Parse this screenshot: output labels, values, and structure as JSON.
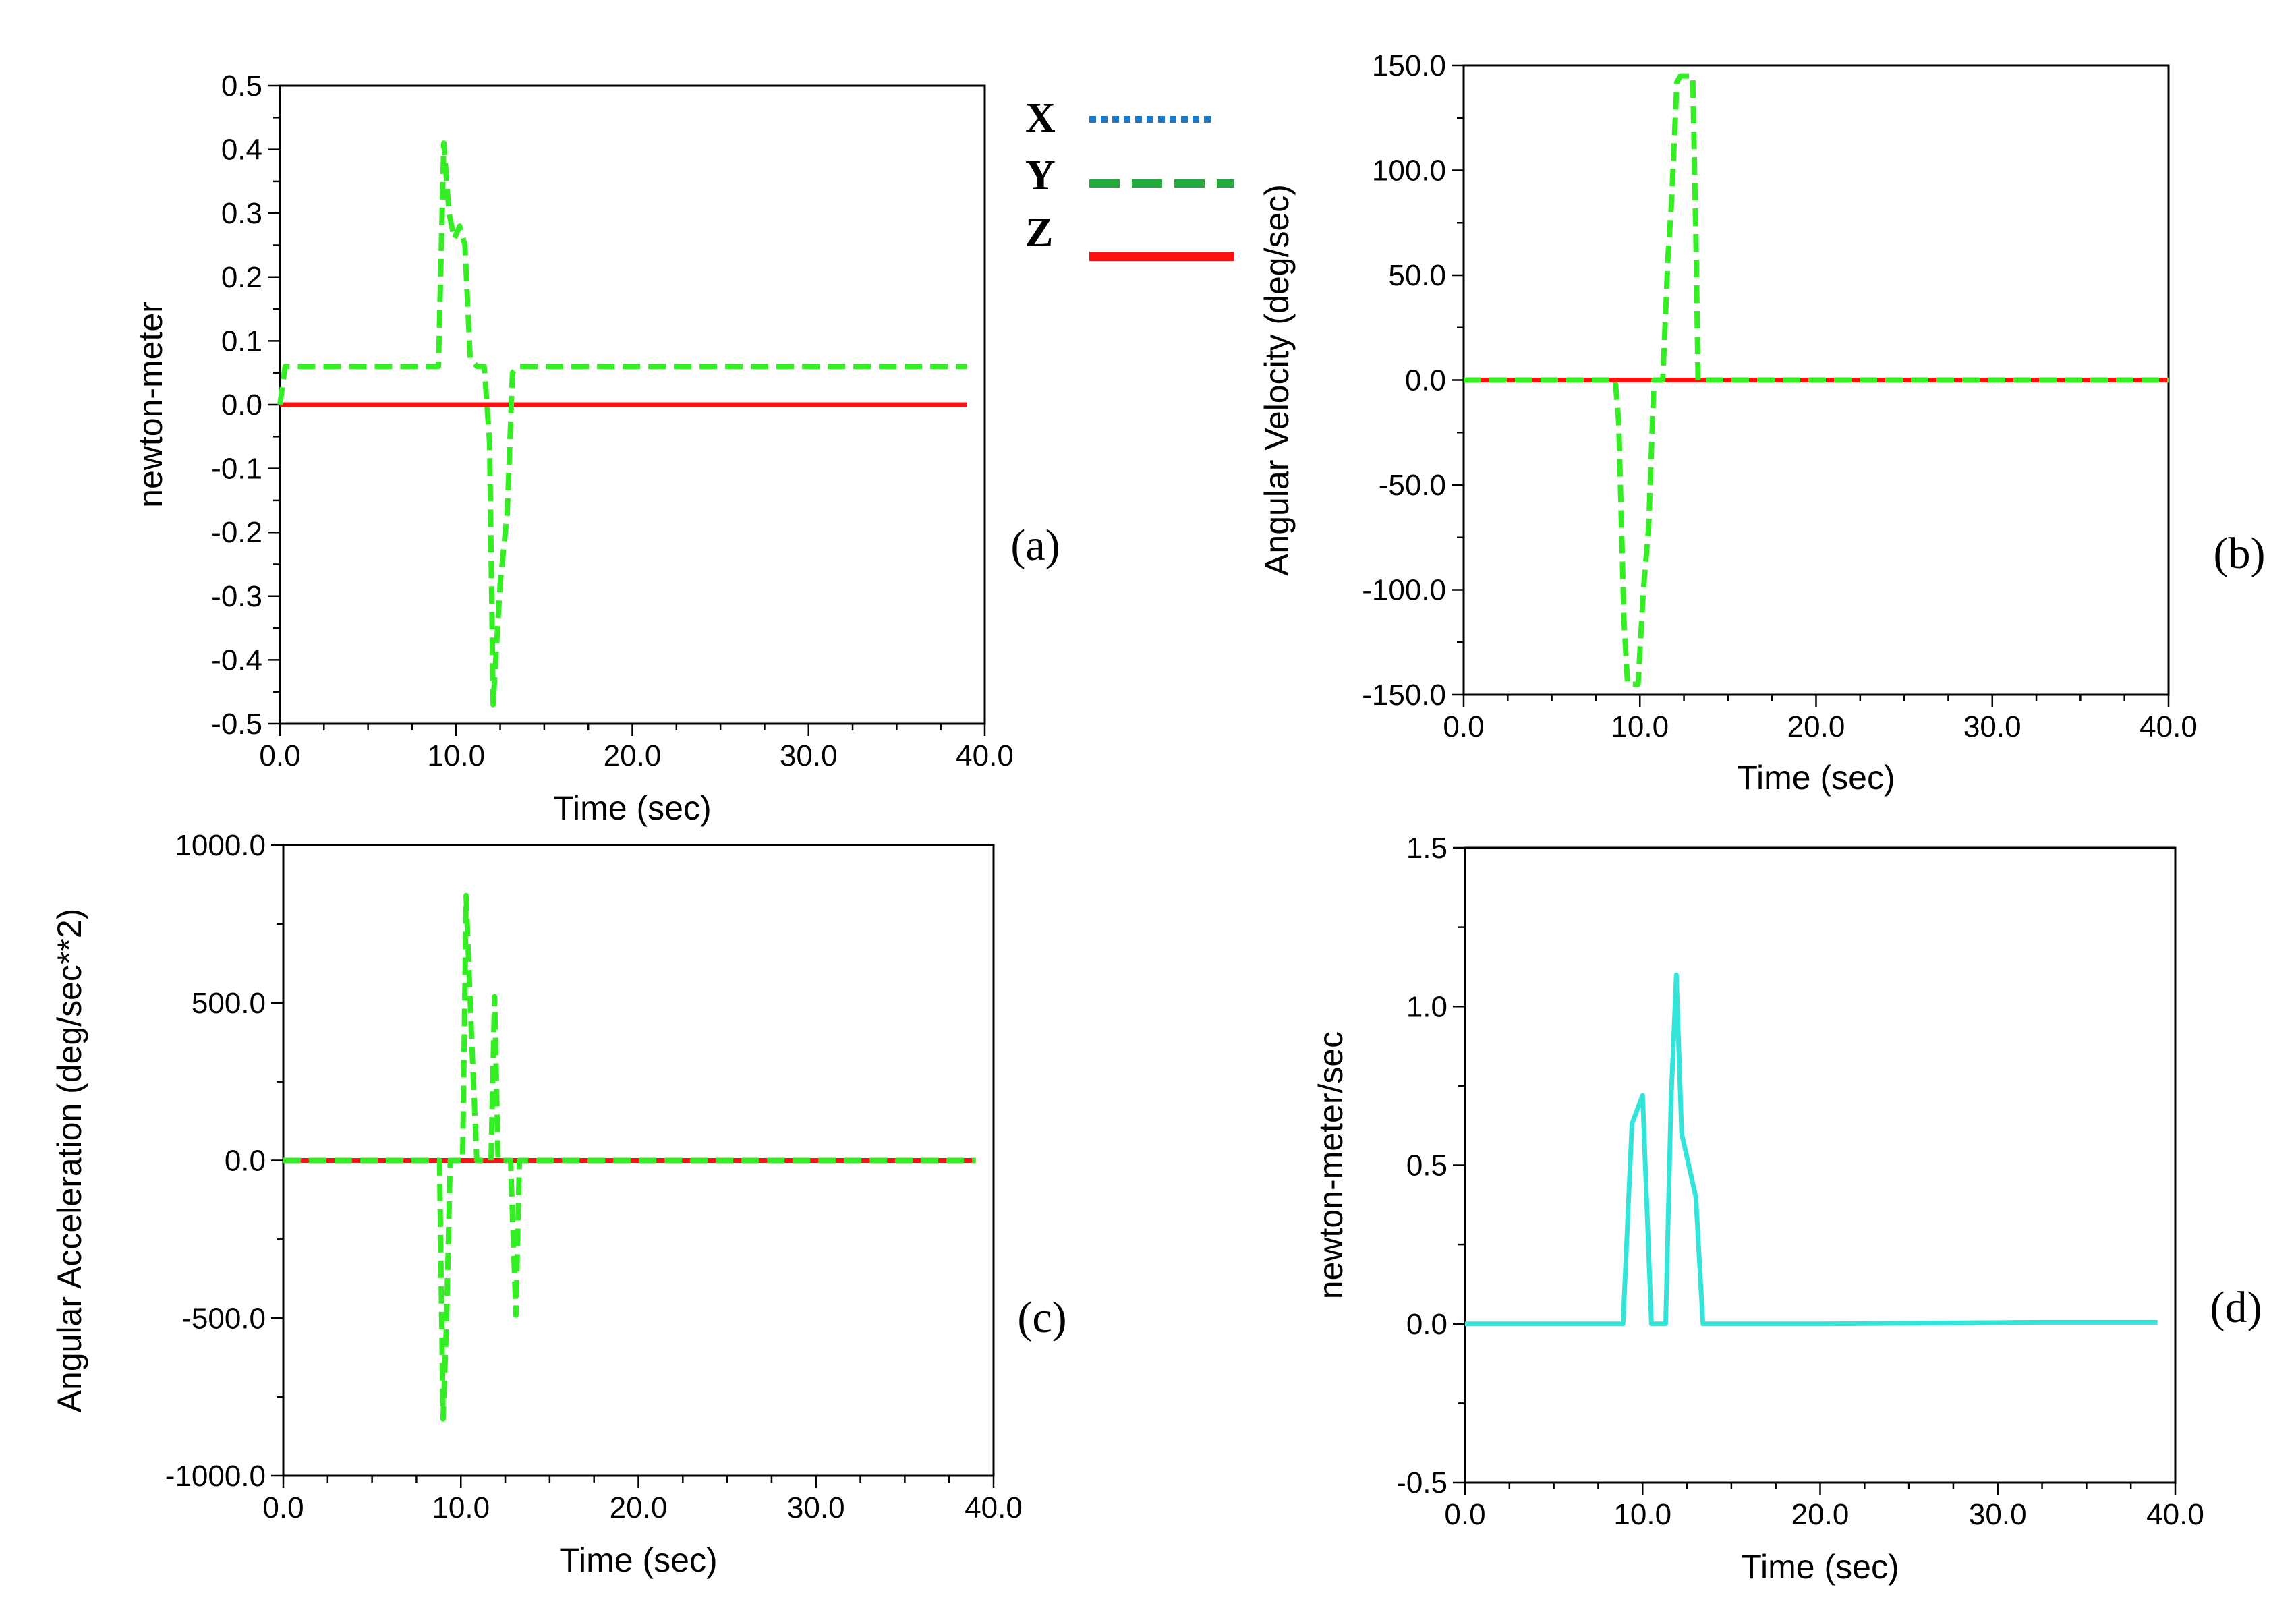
{
  "legend": {
    "entries": [
      {
        "label": "X",
        "color": "#1e78c8",
        "style": "dotted"
      },
      {
        "label": "Y",
        "color": "#22aa3c",
        "style": "dashed"
      },
      {
        "label": "Z",
        "color": "#ff1010",
        "style": "solid"
      }
    ]
  },
  "colors": {
    "y_series": "#33ee22",
    "z_series": "#ff1010",
    "cyan_series": "#33e5d8"
  },
  "chart_data": [
    {
      "id": "a",
      "type": "line",
      "panel_label": "(a)",
      "xlabel": "Time (sec)",
      "ylabel": "newton-meter",
      "xlim": [
        0,
        40
      ],
      "ylim": [
        -0.5,
        0.5
      ],
      "xticks": [
        0,
        10,
        20,
        30,
        40
      ],
      "xtick_labels": [
        "0.0",
        "10.0",
        "20.0",
        "30.0",
        "40.0"
      ],
      "yticks": [
        -0.5,
        -0.4,
        -0.3,
        -0.2,
        -0.1,
        0.0,
        0.1,
        0.2,
        0.3,
        0.4,
        0.5
      ],
      "ytick_labels": [
        "-0.5",
        "-0.4",
        "-0.3",
        "-0.2",
        "-0.1",
        "0.0",
        "0.1",
        "0.2",
        "0.3",
        "0.4",
        "0.5"
      ],
      "series": [
        {
          "name": "Y",
          "style": "dashed",
          "colorKey": "y_series",
          "x": [
            0,
            0.3,
            9.0,
            9.3,
            9.6,
            9.9,
            10.2,
            10.5,
            10.8,
            11.2,
            11.6,
            11.9,
            12.1,
            12.5,
            12.9,
            13.2,
            13.5,
            20,
            30,
            39
          ],
          "y": [
            0.0,
            0.06,
            0.06,
            0.41,
            0.3,
            0.26,
            0.28,
            0.25,
            0.07,
            0.06,
            0.06,
            -0.06,
            -0.47,
            -0.28,
            -0.17,
            0.05,
            0.06,
            0.06,
            0.06,
            0.06
          ]
        },
        {
          "name": "Z",
          "style": "solid",
          "colorKey": "z_series",
          "x": [
            0,
            39
          ],
          "y": [
            0,
            0
          ]
        }
      ]
    },
    {
      "id": "b",
      "type": "line",
      "panel_label": "(b)",
      "xlabel": "Time (sec)",
      "ylabel": "Angular Velocity (deg/sec)",
      "xlim": [
        0,
        40
      ],
      "ylim": [
        -150,
        150
      ],
      "xticks": [
        0,
        10,
        20,
        30,
        40
      ],
      "xtick_labels": [
        "0.0",
        "10.0",
        "20.0",
        "30.0",
        "40.0"
      ],
      "yticks": [
        -150,
        -100,
        -50,
        0,
        50,
        100,
        150
      ],
      "ytick_labels": [
        "-150.0",
        "-100.0",
        "-50.0",
        "0.0",
        "50.0",
        "100.0",
        "150.0"
      ],
      "series": [
        {
          "name": "Y",
          "style": "dashed",
          "colorKey": "y_series",
          "x": [
            0,
            8.6,
            8.8,
            9.1,
            9.3,
            9.9,
            10.2,
            10.5,
            10.8,
            11.3,
            11.6,
            11.8,
            12.1,
            12.3,
            13.0,
            13.2,
            13.3,
            20,
            30,
            40
          ],
          "y": [
            0,
            0,
            -20,
            -115,
            -145,
            -145,
            -100,
            -70,
            0,
            0,
            60,
            85,
            142,
            145,
            145,
            60,
            0,
            0,
            0,
            0
          ]
        },
        {
          "name": "Z",
          "style": "solid",
          "colorKey": "z_series",
          "x": [
            0,
            40
          ],
          "y": [
            0,
            0
          ]
        }
      ]
    },
    {
      "id": "c",
      "type": "line",
      "panel_label": "(c)",
      "xlabel": "Time (sec)",
      "ylabel": "Angular Acceleration (deg/sec**2)",
      "xlim": [
        0,
        40
      ],
      "ylim": [
        -1000,
        1000
      ],
      "xticks": [
        0,
        10,
        20,
        30,
        40
      ],
      "xtick_labels": [
        "0.0",
        "10.0",
        "20.0",
        "30.0",
        "40.0"
      ],
      "yticks": [
        -1000,
        -500,
        0,
        500,
        1000
      ],
      "ytick_labels": [
        "-1000.0",
        "-500.0",
        "0.0",
        "500.0",
        "1000.0"
      ],
      "series": [
        {
          "name": "Y",
          "style": "dashed",
          "colorKey": "y_series",
          "x": [
            0,
            8.8,
            9.0,
            9.2,
            9.4,
            9.7,
            10.1,
            10.3,
            10.6,
            10.9,
            11.7,
            11.9,
            12.1,
            12.4,
            12.8,
            13.1,
            13.3,
            13.6,
            20,
            39
          ],
          "y": [
            0,
            0,
            -820,
            -500,
            0,
            0,
            0,
            840,
            400,
            0,
            0,
            520,
            0,
            0,
            0,
            -490,
            0,
            0,
            0,
            0
          ]
        },
        {
          "name": "Z",
          "style": "solid",
          "colorKey": "z_series",
          "x": [
            0,
            39
          ],
          "y": [
            0,
            0
          ]
        }
      ]
    },
    {
      "id": "d",
      "type": "line",
      "panel_label": "(d)",
      "xlabel": "Time (sec)",
      "ylabel": "newton-meter/sec",
      "xlim": [
        0,
        40
      ],
      "ylim": [
        -0.5,
        1.5
      ],
      "xticks": [
        0,
        10,
        20,
        30,
        40
      ],
      "xtick_labels": [
        "0.0",
        "10.0",
        "20.0",
        "30.0",
        "40.0"
      ],
      "yticks": [
        -0.5,
        0.0,
        0.5,
        1.0,
        1.5
      ],
      "ytick_labels": [
        "-0.5",
        "0.0",
        "0.5",
        "1.0",
        "1.5"
      ],
      "series": [
        {
          "name": "",
          "style": "solid",
          "colorKey": "cyan_series",
          "x": [
            0,
            8.9,
            9.4,
            10.0,
            10.5,
            10.7,
            11.3,
            11.6,
            11.9,
            12.2,
            12.6,
            13.0,
            13.4,
            20,
            32.5,
            39
          ],
          "y": [
            0,
            0,
            0.63,
            0.72,
            0,
            0,
            0,
            0.7,
            1.1,
            0.6,
            0.5,
            0.4,
            0,
            0,
            0.005,
            0.005
          ]
        }
      ]
    }
  ]
}
